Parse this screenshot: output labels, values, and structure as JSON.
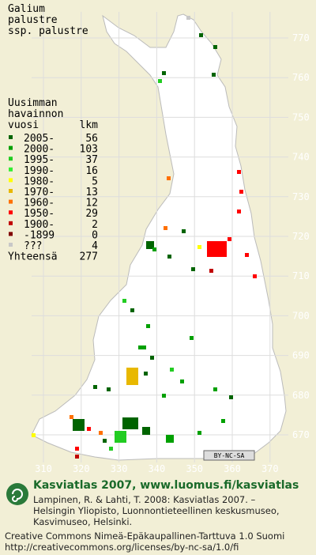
{
  "title": [
    "Galium",
    "palustre",
    "ssp. palustre"
  ],
  "legend": {
    "header": [
      "Uusimman",
      "havainnon",
      "vuosi"
    ],
    "count_header": "lkm",
    "items": [
      {
        "label": "2005-",
        "count": 56,
        "color": "#006400"
      },
      {
        "label": "2000-",
        "count": 103,
        "color": "#00a000"
      },
      {
        "label": "1995-",
        "count": 37,
        "color": "#22cc22"
      },
      {
        "label": "1990-",
        "count": 16,
        "color": "#33ee33"
      },
      {
        "label": "1980-",
        "count": 5,
        "color": "#ffff00"
      },
      {
        "label": "1970-",
        "count": 13,
        "color": "#e8b800"
      },
      {
        "label": "1960-",
        "count": 12,
        "color": "#ff7000"
      },
      {
        "label": "1950-",
        "count": 29,
        "color": "#ff0000"
      },
      {
        "label": "1900-",
        "count": 2,
        "color": "#c00000"
      },
      {
        "label": "-1899",
        "count": 0,
        "color": "#800000"
      },
      {
        "label": "???",
        "count": 4,
        "color": "#c8c8c8"
      }
    ],
    "total_label": "Yhteensä",
    "total": 277
  },
  "grid": {
    "northing": [
      770,
      760,
      750,
      740,
      730,
      720,
      710,
      700,
      690,
      680,
      670
    ],
    "easting": [
      310,
      320,
      330,
      340,
      350,
      360,
      370
    ]
  },
  "license_badge": "BY-NC-SA",
  "footer": {
    "site": "Kasviatlas 2007, www.luomus.fi/kasviatlas",
    "citation": [
      "Lampinen, R. & Lahti, T. 2008: Kasviatlas 2007. –",
      "Helsingin Yliopisto, Luonnontieteellinen keskusmuseo,",
      "Kasvimuseo, Helsinki."
    ],
    "license": [
      "Creative Commons Nimeä-Epäkaupallinen-Tarttuva 1.0 Suomi",
      "http://creativecommons.org/licenses/by-nc-sa/1.0/fi"
    ]
  }
}
